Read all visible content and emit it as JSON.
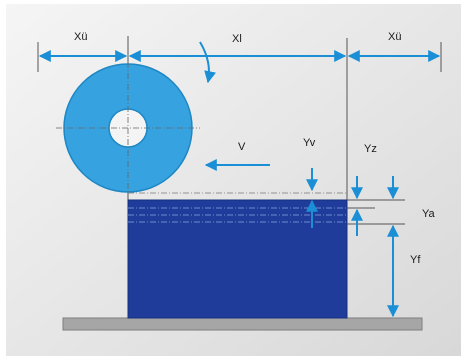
{
  "labels": {
    "xu_left": "Xü",
    "xl": "Xl",
    "xu_right": "Xü",
    "v": "V",
    "yv": "Yv",
    "yz": "Yz",
    "ya": "Ya",
    "yf": "Yf"
  },
  "colors": {
    "background_gradient_light": "#f4f4f4",
    "background_gradient_dark": "#d9d9d9",
    "arrow": "#1b8fd6",
    "line": "#555555",
    "roller": "#36a3e0",
    "roller_edge": "#1e87c4",
    "block": "#1f3c9a",
    "block_edge": "#16307e",
    "base": "#a6a6a6",
    "base_edge": "#7d7d7d"
  }
}
